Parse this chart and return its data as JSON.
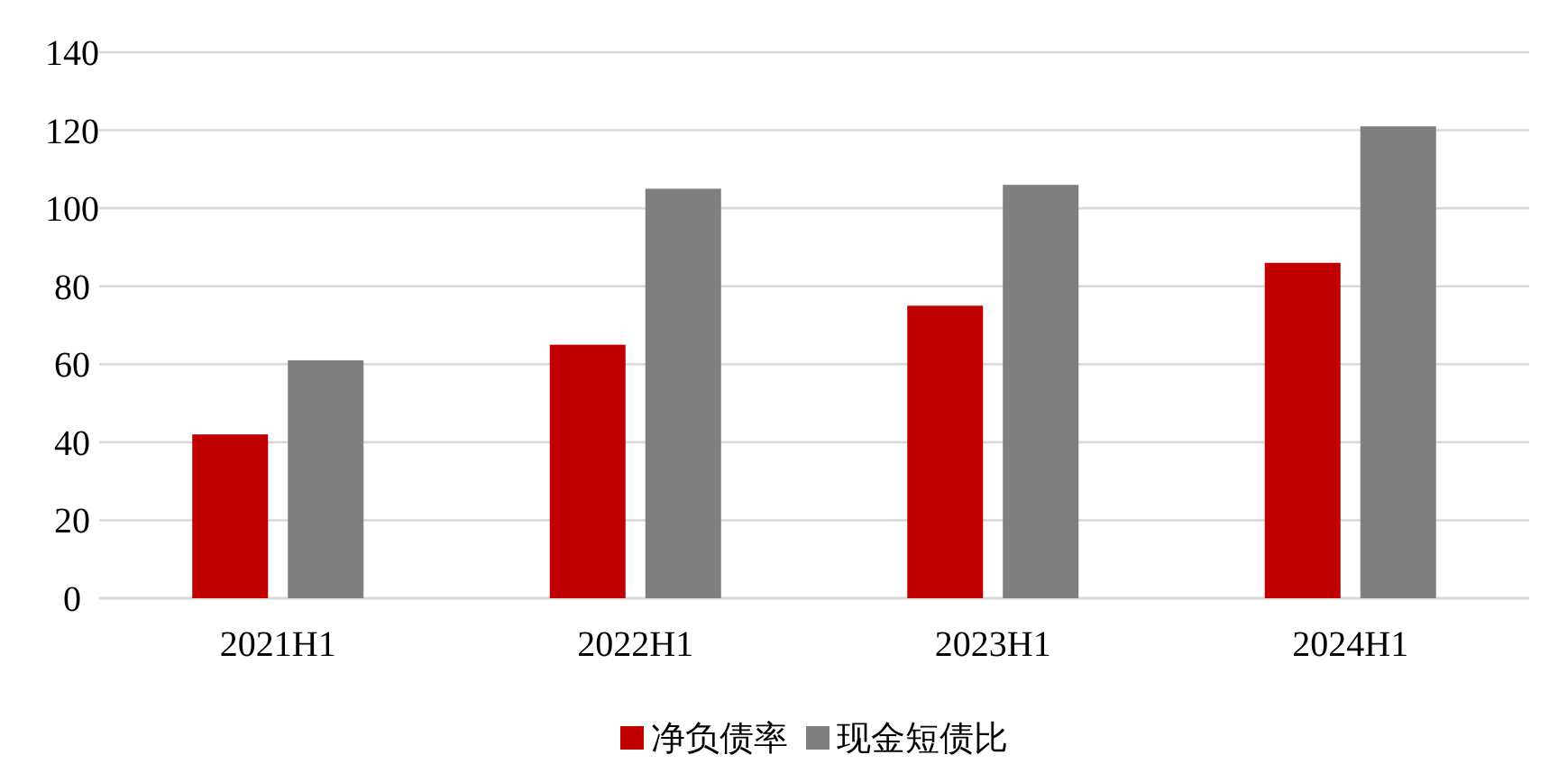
{
  "chart_data": {
    "type": "bar",
    "categories": [
      "2021H1",
      "2022H1",
      "2023H1",
      "2024H1"
    ],
    "series": [
      {
        "name": "净负债率",
        "color": "#c00000",
        "values": [
          42,
          65,
          75,
          86
        ]
      },
      {
        "name": "现金短债比",
        "color": "#7f7f7f",
        "values": [
          61,
          105,
          106,
          121
        ]
      }
    ],
    "ylim": [
      0,
      140
    ],
    "yticks": [
      0,
      20,
      40,
      60,
      80,
      100,
      120,
      140
    ],
    "grid": "y",
    "legend": "bottom"
  }
}
